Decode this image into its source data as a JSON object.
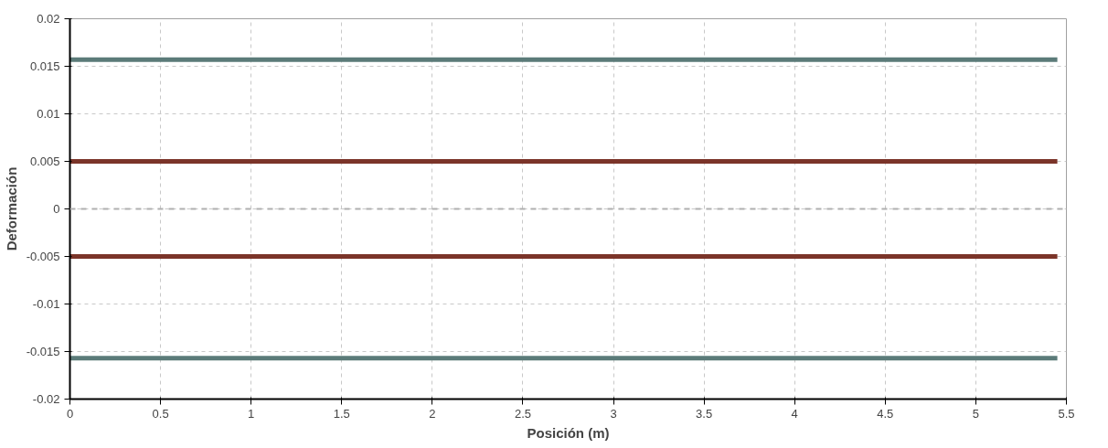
{
  "chart_data": {
    "type": "line",
    "xlabel": "Posición (m)",
    "ylabel": "Deformación",
    "xlim": [
      0,
      5.5
    ],
    "ylim": [
      -0.02,
      0.02
    ],
    "xticks": [
      0,
      0.5,
      1,
      1.5,
      2,
      2.5,
      3,
      3.5,
      4,
      4.5,
      5,
      5.5
    ],
    "yticks": [
      -0.02,
      -0.015,
      -0.01,
      -0.005,
      0,
      0.005,
      0.01,
      0.015,
      0.02
    ],
    "grid": true,
    "line_style": "solid",
    "marker": "none",
    "x": [
      0,
      5.45
    ],
    "series": [
      {
        "color": "#5b7b79",
        "values": [
          0.0157,
          0.0157
        ]
      },
      {
        "color": "#7b3429",
        "values": [
          0.005,
          0.005
        ]
      },
      {
        "color": "#7b3429",
        "values": [
          -0.005,
          -0.005
        ]
      },
      {
        "color": "#5b7b79",
        "values": [
          -0.0157,
          -0.0157
        ]
      }
    ],
    "ref_lines": [
      {
        "axis": "y",
        "value": 0,
        "label": null,
        "color": "#b0b0b0",
        "line_style": "dashed"
      }
    ]
  }
}
